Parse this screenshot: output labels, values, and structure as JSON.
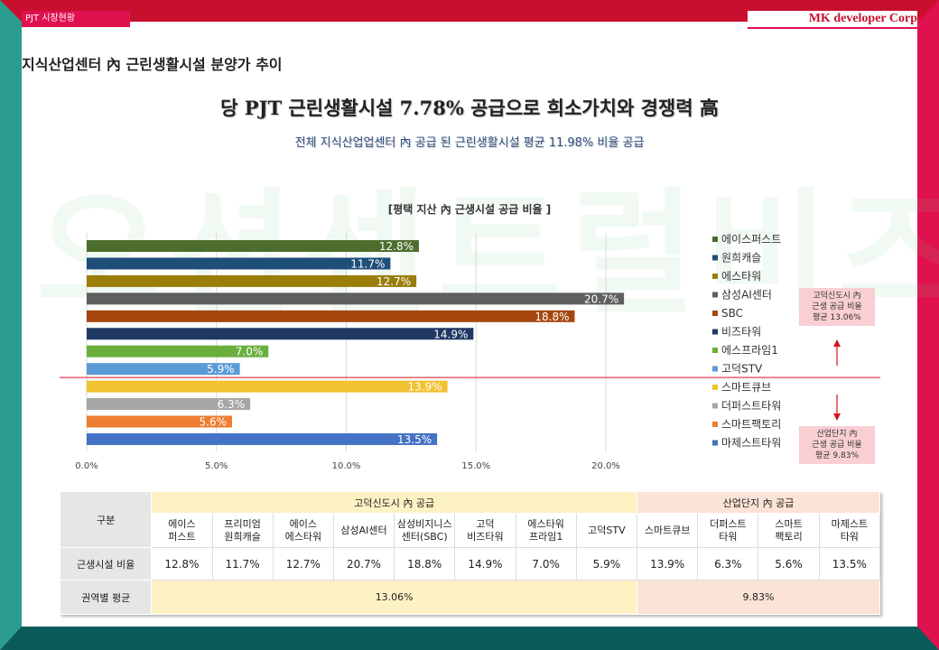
{
  "header": {
    "left_tab": "PJT 시장현황",
    "right_brand": "MK developer Corp"
  },
  "section_title": "지식산업센터 內 근린생활시설 분양가 추이",
  "headline": "당 PJT 근린생활시설 7.78% 공급으로 희소가치와 경쟁력 高",
  "subline": "전체 지식산업업센터 內 공급 된 근린생활시설 평균 11.98% 비율 공급",
  "watermark": "오션센트럴비즈",
  "chart_data": {
    "type": "bar",
    "orientation": "horizontal",
    "title": "[평택 지산 內 근생시설 공급 비율 ]",
    "categories": [
      "에이스퍼스트",
      "원희캐슬",
      "에스타워",
      "삼성AI센터",
      "SBC",
      "비즈타워",
      "에스프라임1",
      "고덕STV",
      "스마트큐브",
      "더퍼스트타워",
      "스마트팩토리",
      "마제스트타워"
    ],
    "values": [
      12.8,
      11.7,
      12.7,
      20.7,
      18.8,
      14.9,
      7.0,
      5.9,
      13.9,
      6.3,
      5.6,
      13.5
    ],
    "value_labels": [
      "12.8%",
      "11.7%",
      "12.7%",
      "20.7%",
      "18.8%",
      "14.9%",
      "7.0%",
      "5.9%",
      "13.9%",
      "6.3%",
      "5.6%",
      "13.5%"
    ],
    "colors": [
      "#4e6e2e",
      "#1f4e79",
      "#9a7d0a",
      "#5f5f5f",
      "#a5470f",
      "#203864",
      "#6aaf3d",
      "#5b9bd5",
      "#f1c232",
      "#a6a6a6",
      "#ed7d31",
      "#4472c4"
    ],
    "xlim": [
      0,
      20
    ],
    "xticks": [
      "0.0%",
      "5.0%",
      "10.0%",
      "15.0%",
      "20.0%"
    ],
    "xtick_values": [
      0,
      5,
      10,
      15,
      20
    ],
    "grid": true,
    "legend": "right",
    "divider_after_index": 7,
    "divider_color": "#d9121f"
  },
  "notes": {
    "upper": [
      "고덕신도시 內",
      "근생 공급 비율",
      "평균 13.06%"
    ],
    "lower": [
      "산업단지 內",
      "근생 공급 비율",
      "평균 9.83%"
    ],
    "arrow_color": "#d9121f"
  },
  "table": {
    "corner": "구분",
    "group1": "고덕신도시 內 공급",
    "group2": "산업단지 內 공급",
    "columns": [
      [
        "에이스",
        "퍼스트"
      ],
      [
        "프리미엄",
        "원희캐슬"
      ],
      [
        "에이스",
        "에스타워"
      ],
      [
        "삼성AI센터"
      ],
      [
        "삼성비지니스",
        "센터(SBC)"
      ],
      [
        "고덕",
        "비즈타워"
      ],
      [
        "에스타워",
        "프라임1"
      ],
      [
        "고덕STV"
      ],
      [
        "스마트큐브"
      ],
      [
        "더퍼스트",
        "타워"
      ],
      [
        "스마트",
        "팩토리"
      ],
      [
        "마제스트",
        "타워"
      ]
    ],
    "row_ratio_label": "근생시설 비율",
    "row_ratio_values": [
      "12.8%",
      "11.7%",
      "12.7%",
      "20.7%",
      "18.8%",
      "14.9%",
      "7.0%",
      "5.9%",
      "13.9%",
      "6.3%",
      "5.6%",
      "13.5%"
    ],
    "row_avg_label": "권역별 평균",
    "avg_group1": "13.06%",
    "avg_group2": "9.83%"
  }
}
